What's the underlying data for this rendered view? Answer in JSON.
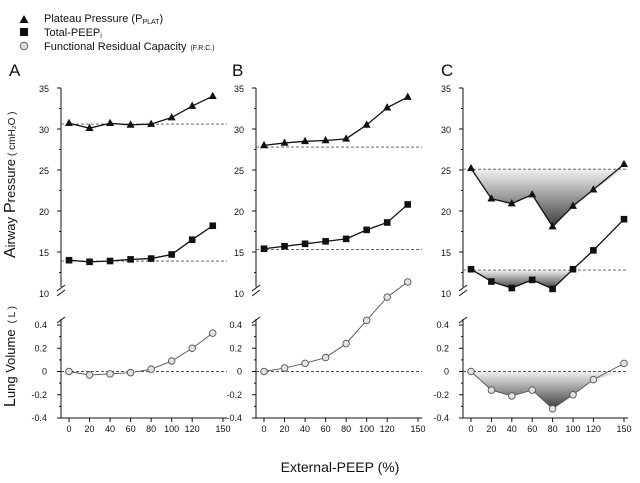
{
  "legend": [
    {
      "marker": "triangle",
      "text": "Plateau  Pressure (P",
      "sub": "PLAT",
      "close": ")"
    },
    {
      "marker": "square",
      "text": "Total-PEEP",
      "sub": "i",
      "close": ""
    },
    {
      "marker": "circle",
      "text": "Functional Residual Capacity",
      "sub": "(F.R.C.)",
      "close": ""
    }
  ],
  "ylabels": {
    "pressure_big": "P",
    "pressure_rest": "ressure",
    "airway_big": "A",
    "airway_rest": "irway",
    "pressure_unit": "( cmH₂O )",
    "volume_big": "L",
    "volume_rest": "ung  Volume",
    "volume_unit": "( L )"
  },
  "xlabel": "External-PEEP (%)",
  "pressure_ticks": [
    "35",
    "30",
    "25",
    "20",
    "15",
    "10"
  ],
  "volume_ticks": [
    "0.4",
    "0.2",
    "0",
    "-0.2",
    "-0.4"
  ],
  "x_ticks": [
    "0",
    "20",
    "40",
    "60",
    "80",
    "100",
    "120",
    "150"
  ],
  "chart_data": [
    {
      "panel": "A",
      "type": "line",
      "xlabel": "External-PEEP (%)",
      "ylabel": "Airway Pressure (cmH2O) / Lung Volume (L)",
      "ylim_pressure": [
        10,
        35
      ],
      "ylim_volume": [
        -0.4,
        0.4
      ],
      "xlim": [
        -10,
        150
      ],
      "series": [
        {
          "name": "Plateau Pressure (PPLAT)",
          "x": [
            0,
            20,
            40,
            60,
            80,
            100,
            120,
            140
          ],
          "values": [
            30.7,
            30.1,
            30.7,
            30.5,
            30.6,
            31.4,
            32.8,
            34.0
          ],
          "baseline": 30.6
        },
        {
          "name": "Total-PEEPi",
          "x": [
            0,
            20,
            40,
            60,
            80,
            100,
            120,
            140
          ],
          "values": [
            14.0,
            13.8,
            13.9,
            14.1,
            14.2,
            14.7,
            16.5,
            18.2
          ],
          "baseline": 13.9
        },
        {
          "name": "Functional Residual Capacity (F.R.C.)",
          "x": [
            0,
            20,
            40,
            60,
            80,
            100,
            120,
            140
          ],
          "values": [
            0.0,
            -0.03,
            -0.02,
            -0.01,
            0.02,
            0.09,
            0.2,
            0.33
          ],
          "baseline": 0
        }
      ]
    },
    {
      "panel": "B",
      "type": "line",
      "xlabel": "External-PEEP (%)",
      "ylabel": "Airway Pressure (cmH2O) / Lung Volume (L)",
      "ylim_pressure": [
        10,
        35
      ],
      "ylim_volume": [
        -0.4,
        0.4
      ],
      "xlim": [
        -10,
        150
      ],
      "series": [
        {
          "name": "Plateau Pressure (PPLAT)",
          "x": [
            0,
            20,
            40,
            60,
            80,
            100,
            120,
            140
          ],
          "values": [
            28.0,
            28.3,
            28.5,
            28.6,
            28.8,
            30.5,
            32.6,
            33.9
          ],
          "baseline": 27.8
        },
        {
          "name": "Total-PEEPi",
          "x": [
            0,
            20,
            40,
            60,
            80,
            100,
            120,
            140
          ],
          "values": [
            15.4,
            15.7,
            16.0,
            16.3,
            16.6,
            17.7,
            18.6,
            20.8
          ],
          "baseline": 15.3
        },
        {
          "name": "Functional Residual Capacity (F.R.C.)",
          "x": [
            0,
            20,
            40,
            60,
            80,
            100,
            120,
            140
          ],
          "values": [
            0.0,
            0.03,
            0.07,
            0.12,
            0.24,
            0.44,
            0.64,
            0.77
          ],
          "baseline": 0
        }
      ]
    },
    {
      "panel": "C",
      "type": "area",
      "xlabel": "External-PEEP (%)",
      "ylabel": "Airway Pressure (cmH2O) / Lung Volume (L)",
      "ylim_pressure": [
        10,
        35
      ],
      "ylim_volume": [
        -0.4,
        0.4
      ],
      "xlim": [
        -10,
        150
      ],
      "series": [
        {
          "name": "Plateau Pressure (PPLAT)",
          "x": [
            0,
            20,
            40,
            60,
            80,
            100,
            120,
            150
          ],
          "values": [
            25.2,
            21.5,
            20.9,
            22.0,
            18.1,
            20.6,
            22.6,
            25.7
          ],
          "baseline": 25.1
        },
        {
          "name": "Total-PEEPi",
          "x": [
            0,
            20,
            40,
            60,
            80,
            100,
            120,
            150
          ],
          "values": [
            12.9,
            11.4,
            10.6,
            11.6,
            10.5,
            12.9,
            15.2,
            19.0
          ],
          "baseline": 12.8
        },
        {
          "name": "Functional Residual Capacity (F.R.C.)",
          "x": [
            0,
            20,
            40,
            60,
            80,
            100,
            120,
            150
          ],
          "values": [
            0.0,
            -0.16,
            -0.21,
            -0.16,
            -0.32,
            -0.2,
            -0.07,
            0.07
          ],
          "baseline": 0
        }
      ]
    }
  ]
}
